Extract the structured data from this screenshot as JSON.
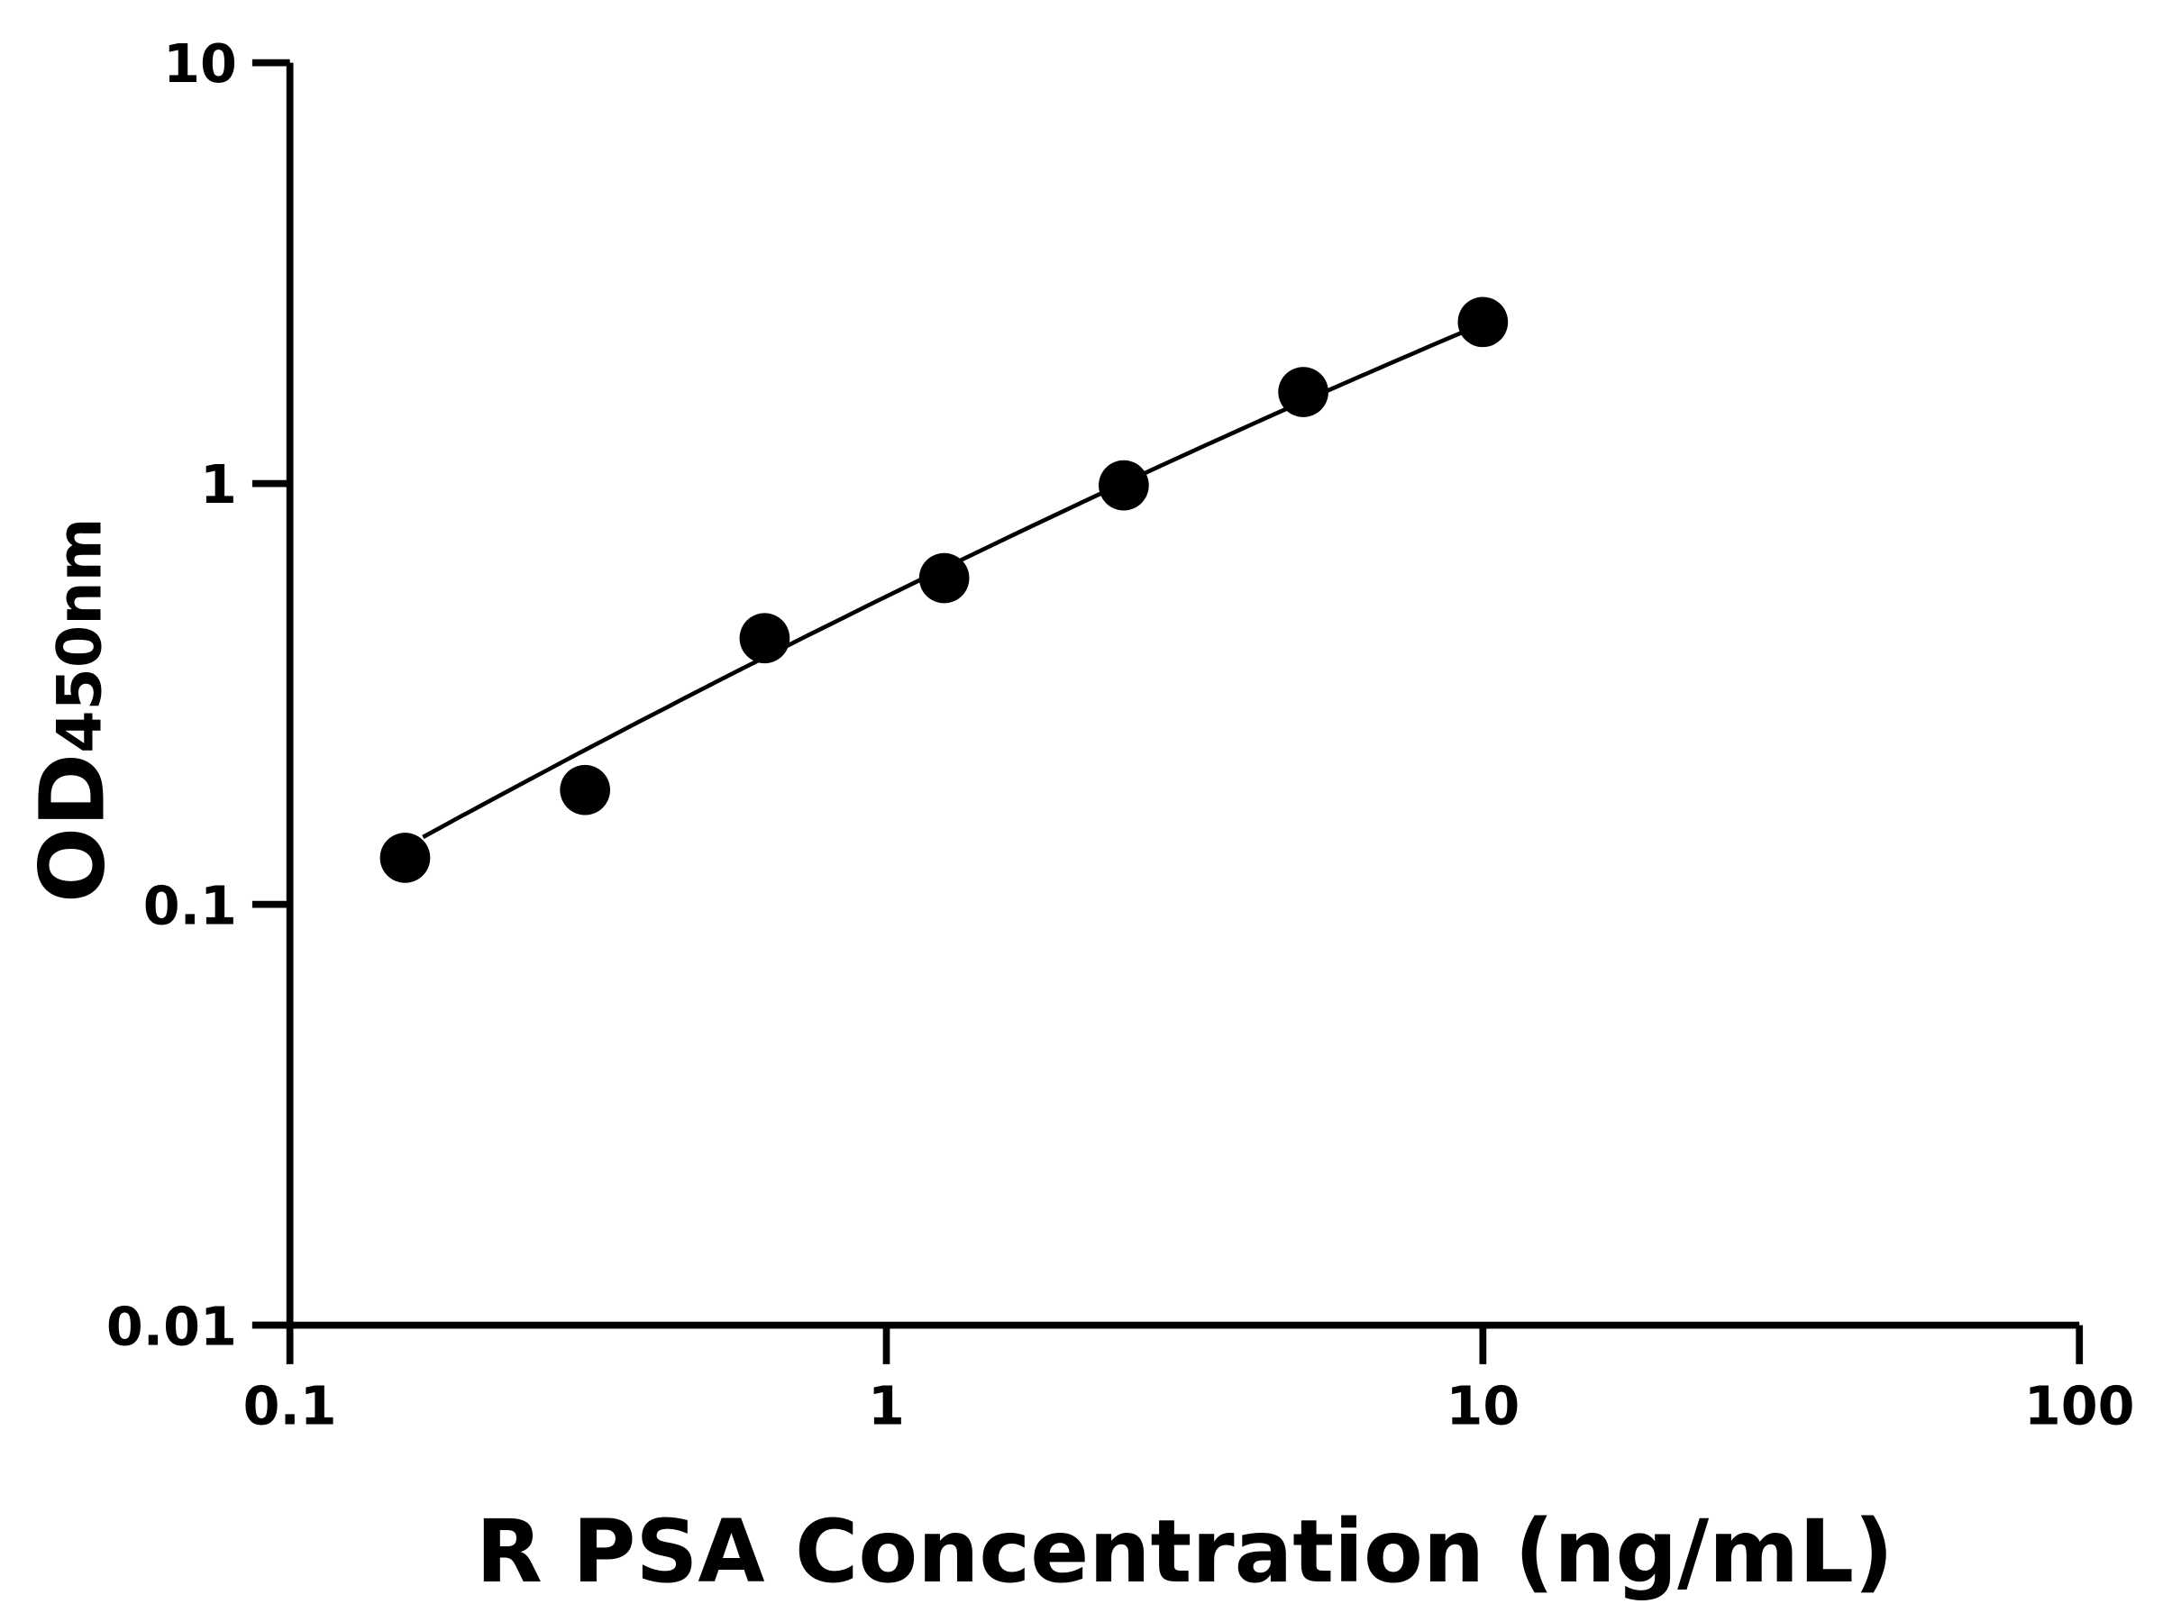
{
  "chart_data": {
    "type": "scatter",
    "title": "",
    "xlabel": "R PSA Concentration (ng/mL)",
    "ylabel_main": "OD",
    "ylabel_sub": "450nm",
    "x_scale": "log",
    "y_scale": "log",
    "xlim": [
      0.1,
      100
    ],
    "ylim": [
      0.01,
      10
    ],
    "x_ticks": [
      0.1,
      1,
      10,
      100
    ],
    "x_tick_labels": [
      "0.1",
      "1",
      "10",
      "100"
    ],
    "y_ticks": [
      0.01,
      0.1,
      1,
      10
    ],
    "y_tick_labels": [
      "0.01",
      "0.1",
      "1",
      "10"
    ],
    "grid": false,
    "legend": "none",
    "series": [
      {
        "x": [
          0.156,
          0.3125,
          0.625,
          1.25,
          2.5,
          5,
          10
        ],
        "y": [
          0.129,
          0.187,
          0.429,
          0.596,
          0.99,
          1.65,
          2.42
        ],
        "marker": "filled-circle",
        "color": "#000000",
        "fit_curve": true
      }
    ]
  }
}
